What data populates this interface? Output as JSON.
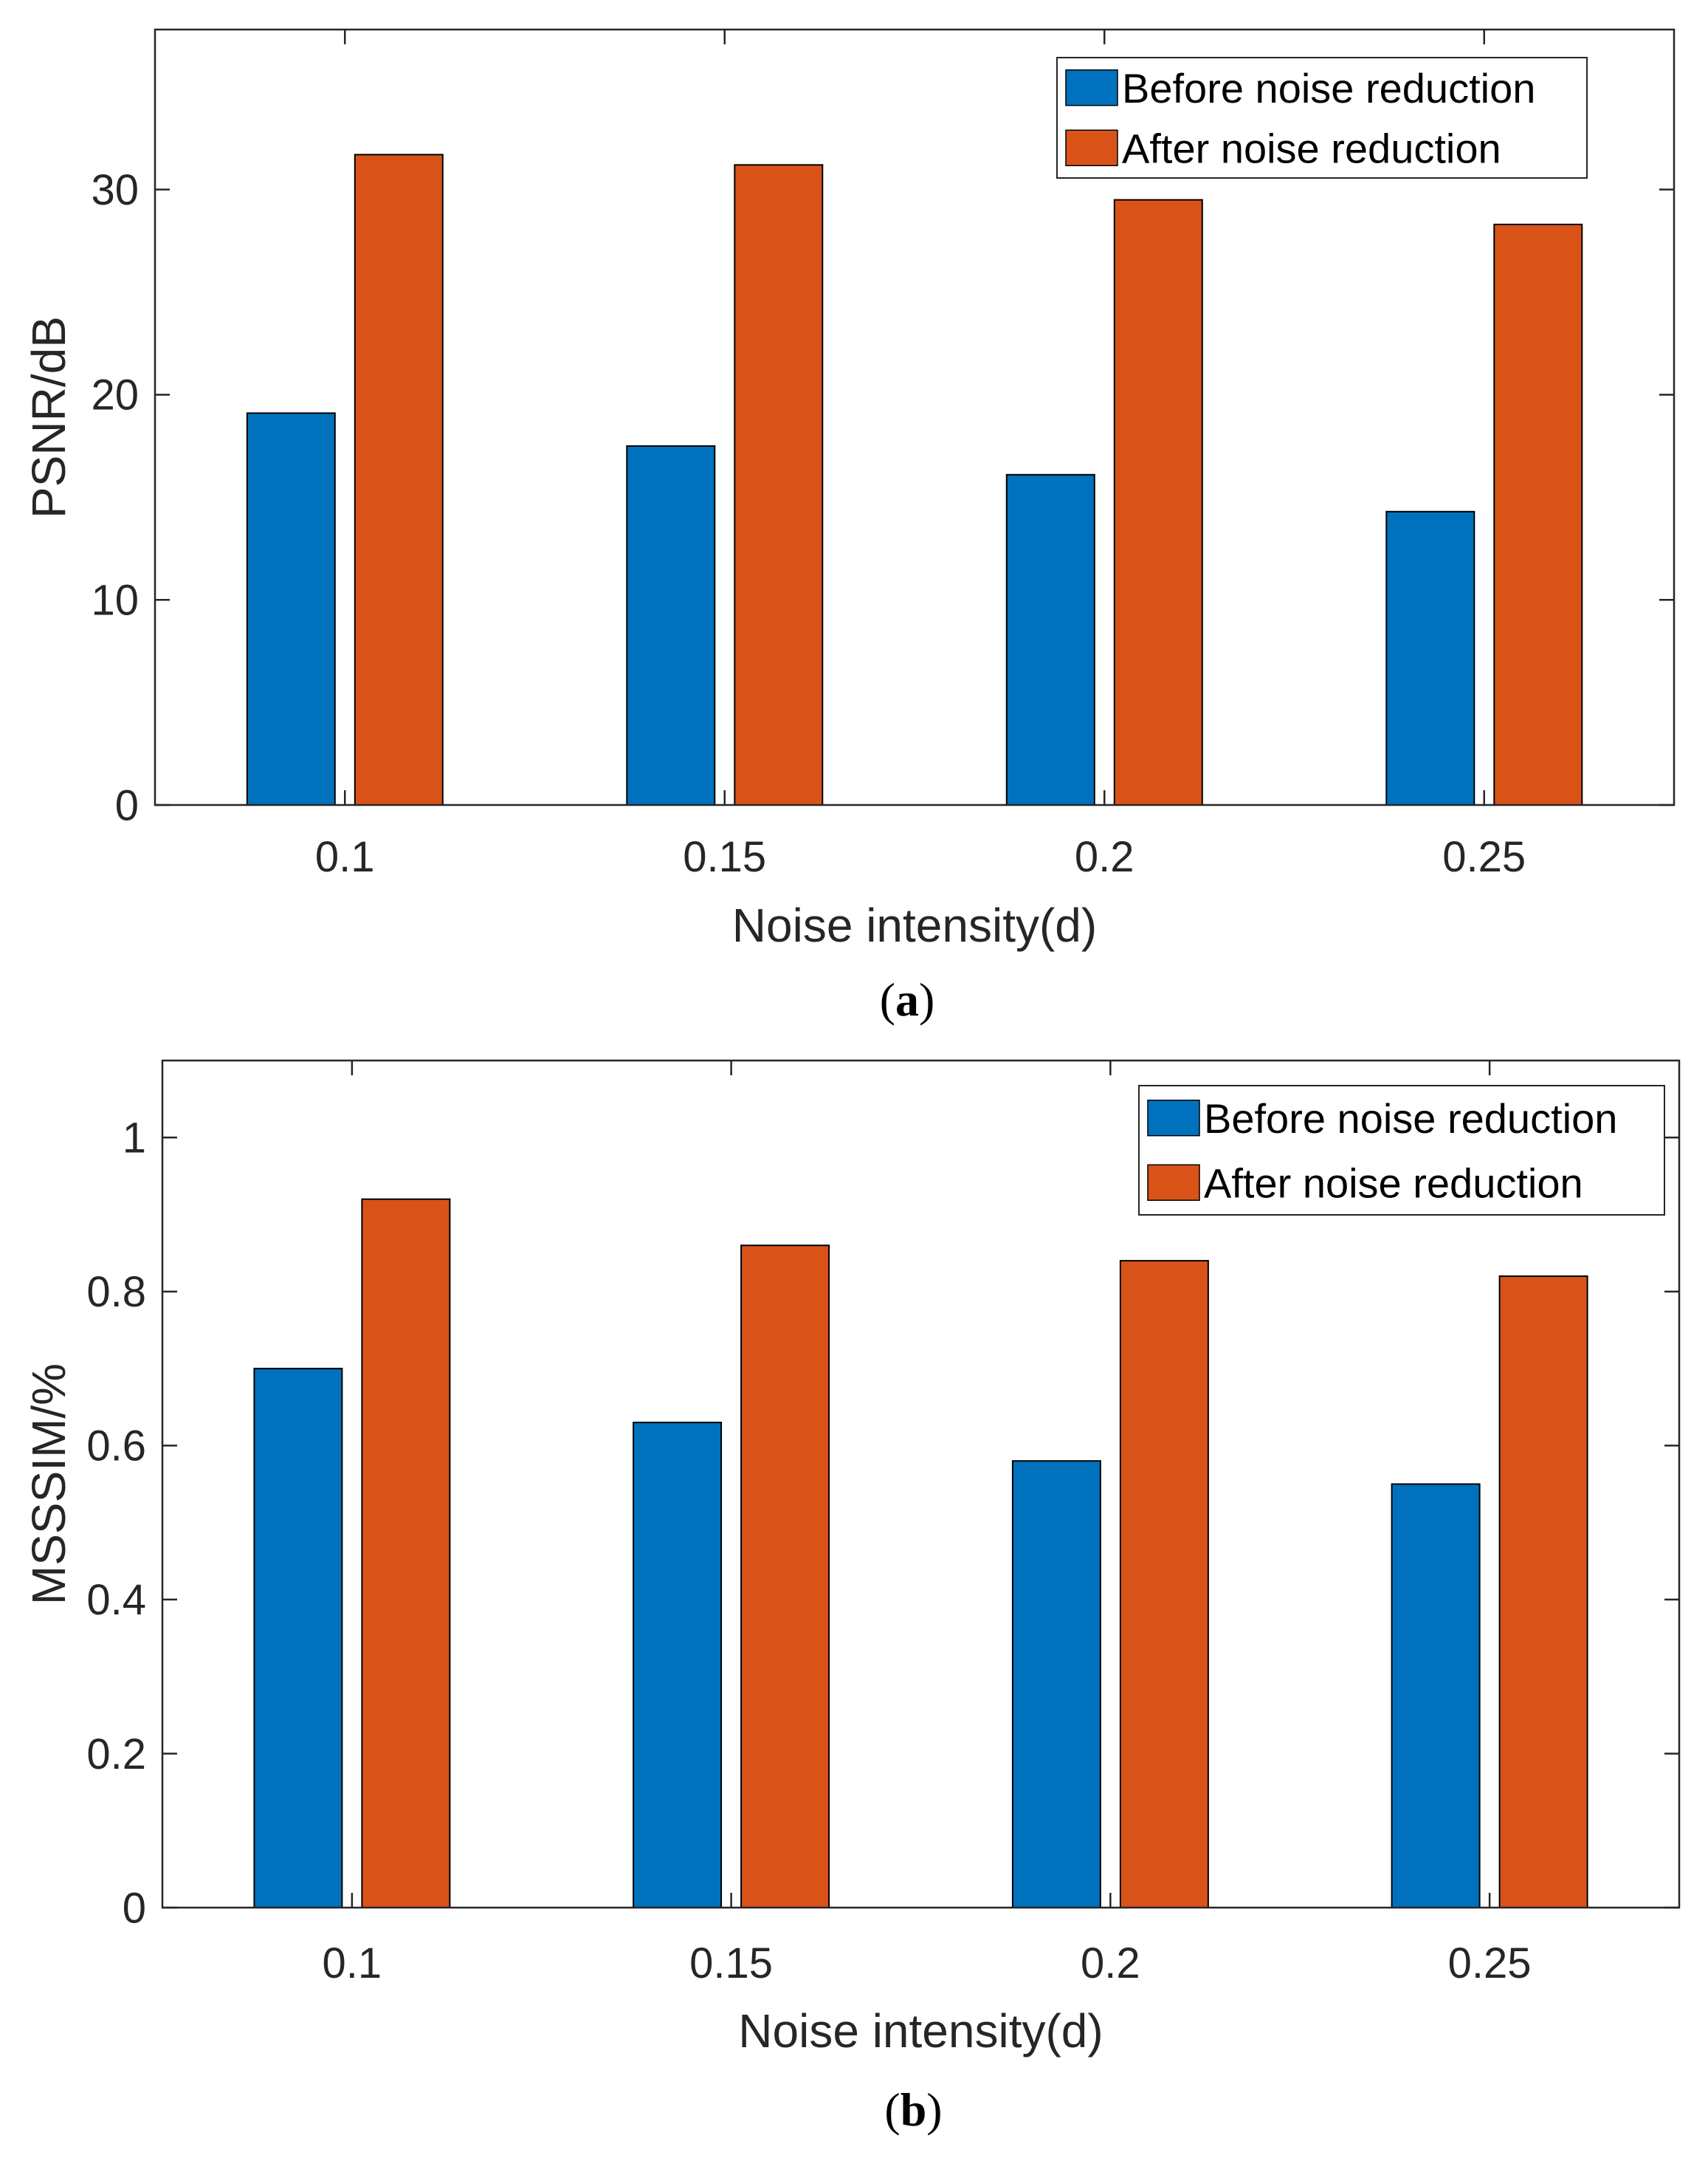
{
  "chart_data": [
    {
      "type": "bar",
      "caption": "a",
      "title": "",
      "xlabel": "Noise intensity(d)",
      "ylabel": "PSNR/dB",
      "categories": [
        "0.1",
        "0.15",
        "0.2",
        "0.25"
      ],
      "ylim": [
        0,
        37.8
      ],
      "yticks": [
        0,
        10,
        20,
        30
      ],
      "ytick_labels": [
        "0",
        "10",
        "20",
        "30"
      ],
      "grid": false,
      "legend_position": "top-right",
      "series": [
        {
          "name": "Before noise reduction",
          "color": "#0072BD",
          "values": [
            19.1,
            17.5,
            16.1,
            14.3
          ]
        },
        {
          "name": "After noise reduction",
          "color": "#D95319",
          "values": [
            31.7,
            31.2,
            29.5,
            28.3
          ]
        }
      ]
    },
    {
      "type": "bar",
      "caption": "b",
      "title": "",
      "xlabel": "Noise intensity(d)",
      "ylabel": "MSSSIM/%",
      "categories": [
        "0.1",
        "0.15",
        "0.2",
        "0.25"
      ],
      "ylim": [
        0,
        1.1
      ],
      "yticks": [
        0,
        0.2,
        0.4,
        0.6,
        0.8,
        1
      ],
      "ytick_labels": [
        "0",
        "0.2",
        "0.4",
        "0.6",
        "0.8",
        "1"
      ],
      "grid": false,
      "legend_position": "top-right",
      "series": [
        {
          "name": "Before noise reduction",
          "color": "#0072BD",
          "values": [
            0.7,
            0.63,
            0.58,
            0.55
          ]
        },
        {
          "name": "After noise reduction",
          "color": "#D95319",
          "values": [
            0.92,
            0.86,
            0.84,
            0.82
          ]
        }
      ]
    }
  ]
}
